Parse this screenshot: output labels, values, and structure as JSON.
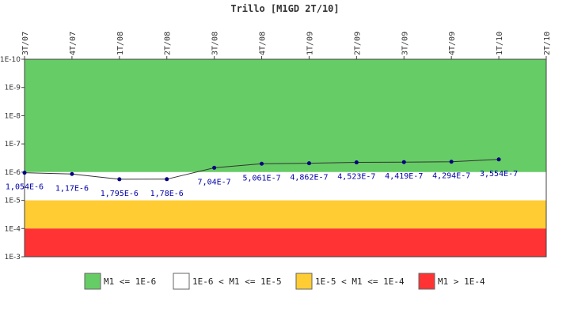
{
  "chart_data": {
    "type": "line",
    "title": "Trillo [M1GD 2T/10]",
    "x": [
      "3T/07",
      "4T/07",
      "1T/08",
      "2T/08",
      "3T/08",
      "4T/08",
      "1T/09",
      "2T/09",
      "3T/09",
      "4T/09",
      "1T/10",
      "2T/10"
    ],
    "y_axis": {
      "scale": "log",
      "inverted": true,
      "tick_labels": [
        "1E-10",
        "1E-9",
        "1E-8",
        "1E-7",
        "1E-6",
        "1E-5",
        "1E-4",
        "1E-3"
      ],
      "range": [
        1e-10,
        0.001
      ]
    },
    "series": [
      {
        "values": [
          1.054e-06,
          1.17e-06,
          1.795e-06,
          1.78e-06,
          7.04e-07,
          5.061e-07,
          4.862e-07,
          4.523e-07,
          4.419e-07,
          4.294e-07,
          3.554e-07,
          null
        ],
        "labels": [
          "1,054E-6",
          "1,17E-6",
          "1,795E-6",
          "1,78E-6",
          "7,04E-7",
          "5,061E-7",
          "4,862E-7",
          "4,523E-7",
          "4,419E-7",
          "4,294E-7",
          "3,554E-7",
          ""
        ],
        "line_color": "#333333",
        "marker_color": "#000080"
      }
    ],
    "bands": [
      {
        "label": "M1 <= 1E-6",
        "from": 1e-10,
        "to": 1e-06,
        "color": "#66cc66"
      },
      {
        "label": "1E-6 < M1 <= 1E-5",
        "from": 1e-06,
        "to": 1e-05,
        "color": "#ffffff"
      },
      {
        "label": "1E-5 < M1 <= 1E-4",
        "from": 1e-05,
        "to": 0.0001,
        "color": "#ffcc33"
      },
      {
        "label": "M1 > 1E-4",
        "from": 0.0001,
        "to": 0.001,
        "color": "#ff3333"
      }
    ],
    "legend_position": "bottom",
    "grid": false
  }
}
